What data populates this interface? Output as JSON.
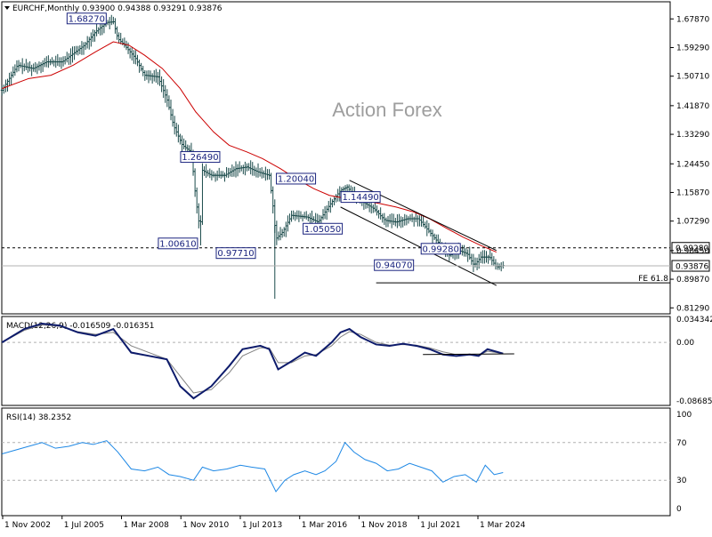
{
  "symbol_header": "EURCHF,Monthly  0.93900 0.94388 0.93291 0.93876",
  "watermark": "Action Forex",
  "chart_data": [
    {
      "type": "candlestick",
      "title": "EURCHF,Monthly  0.93900 0.94388 0.93291 0.93876",
      "ohlc_last": {
        "open": 0.939,
        "high": 0.94388,
        "low": 0.93291,
        "close": 0.93876
      },
      "ylim": [
        0.795,
        1.73
      ],
      "y_ticks": [
        "1.67870",
        "1.59290",
        "1.50710",
        "1.41870",
        "1.33290",
        "1.24450",
        "1.15870",
        "1.07290",
        "0.98450",
        "0.89870",
        "0.81290"
      ],
      "x_ticks": [
        "1 Nov 2002",
        "1 Jul 2005",
        "1 Mar 2008",
        "1 Nov 2010",
        "1 Jul 2013",
        "1 Mar 2016",
        "1 Nov 2018",
        "1 Jul 2021",
        "1 Mar 2024"
      ],
      "price_path": [
        [
          2002.8,
          1.465
        ],
        [
          2003.5,
          1.54
        ],
        [
          2004.2,
          1.53
        ],
        [
          2004.8,
          1.55
        ],
        [
          2005.5,
          1.55
        ],
        [
          2006.5,
          1.6
        ],
        [
          2007.0,
          1.64
        ],
        [
          2007.5,
          1.668
        ],
        [
          2007.8,
          1.67
        ],
        [
          2008.0,
          1.62
        ],
        [
          2008.3,
          1.6
        ],
        [
          2008.8,
          1.56
        ],
        [
          2009.2,
          1.51
        ],
        [
          2009.8,
          1.505
        ],
        [
          2010.2,
          1.44
        ],
        [
          2010.5,
          1.36
        ],
        [
          2010.9,
          1.3
        ],
        [
          2011.3,
          1.28
        ],
        [
          2011.5,
          1.14
        ],
        [
          2011.7,
          1.04
        ],
        [
          2011.8,
          1.225
        ],
        [
          2012.2,
          1.21
        ],
        [
          2012.8,
          1.21
        ],
        [
          2013.3,
          1.23
        ],
        [
          2013.8,
          1.235
        ],
        [
          2014.3,
          1.22
        ],
        [
          2014.8,
          1.21
        ],
        [
          2015.0,
          1.1
        ],
        [
          2015.1,
          1.02
        ],
        [
          2015.4,
          1.04
        ],
        [
          2015.8,
          1.09
        ],
        [
          2016.5,
          1.085
        ],
        [
          2017.0,
          1.07
        ],
        [
          2017.5,
          1.12
        ],
        [
          2018.0,
          1.165
        ],
        [
          2018.3,
          1.175
        ],
        [
          2018.6,
          1.15
        ],
        [
          2019.0,
          1.13
        ],
        [
          2019.5,
          1.11
        ],
        [
          2020.0,
          1.075
        ],
        [
          2020.5,
          1.07
        ],
        [
          2021.0,
          1.08
        ],
        [
          2021.5,
          1.08
        ],
        [
          2022.0,
          1.04
        ],
        [
          2022.5,
          1.0
        ],
        [
          2022.9,
          0.97
        ],
        [
          2023.3,
          0.985
        ],
        [
          2023.7,
          0.975
        ],
        [
          2024.0,
          0.94
        ],
        [
          2024.3,
          0.965
        ],
        [
          2024.7,
          0.965
        ],
        [
          2025.0,
          0.935
        ],
        [
          2025.3,
          0.94
        ]
      ],
      "ma_path": [
        [
          2002.8,
          1.47
        ],
        [
          2004.0,
          1.5
        ],
        [
          2005.0,
          1.51
        ],
        [
          2006.0,
          1.54
        ],
        [
          2007.0,
          1.58
        ],
        [
          2007.8,
          1.61
        ],
        [
          2008.5,
          1.6
        ],
        [
          2009.2,
          1.57
        ],
        [
          2010.0,
          1.53
        ],
        [
          2010.8,
          1.47
        ],
        [
          2011.5,
          1.4
        ],
        [
          2012.3,
          1.34
        ],
        [
          2013.0,
          1.3
        ],
        [
          2013.8,
          1.28
        ],
        [
          2014.5,
          1.26
        ],
        [
          2015.3,
          1.23
        ],
        [
          2016.0,
          1.2
        ],
        [
          2016.8,
          1.17
        ],
        [
          2017.5,
          1.15
        ],
        [
          2018.3,
          1.14
        ],
        [
          2019.0,
          1.135
        ],
        [
          2019.8,
          1.125
        ],
        [
          2020.5,
          1.115
        ],
        [
          2021.3,
          1.1
        ],
        [
          2022.0,
          1.08
        ],
        [
          2022.8,
          1.05
        ],
        [
          2023.5,
          1.025
        ],
        [
          2024.3,
          1.0
        ],
        [
          2025.0,
          0.98
        ]
      ],
      "annotations": [
        {
          "text": "1.68270",
          "x": 2006.6,
          "y": 1.68
        },
        {
          "text": "1.26490",
          "x": 2011.7,
          "y": 1.265
        },
        {
          "text": "1.00610",
          "x": 2010.7,
          "y": 1.006
        },
        {
          "text": "0.97710",
          "x": 2013.3,
          "y": 0.977
        },
        {
          "text": "1.20040",
          "x": 2016.0,
          "y": 1.2
        },
        {
          "text": "1.14490",
          "x": 2018.9,
          "y": 1.145
        },
        {
          "text": "1.05050",
          "x": 2017.2,
          "y": 1.05
        },
        {
          "text": "0.99280",
          "x": 2022.5,
          "y": 0.99
        },
        {
          "text": "0.94070",
          "x": 2020.4,
          "y": 0.941
        }
      ],
      "horizontal_lines": [
        {
          "y": 0.9928,
          "style": "dashed",
          "label": "0.99280"
        },
        {
          "y": 0.93876,
          "style": "solid",
          "label": "0.93876"
        }
      ],
      "fib_extension": {
        "label": "FE 61.8",
        "y": 0.888
      },
      "channel": [
        {
          "x1": 2018.4,
          "y1": 1.195,
          "x2": 2025.0,
          "y2": 0.985
        },
        {
          "x1": 2018.0,
          "y1": 1.115,
          "x2": 2025.0,
          "y2": 0.88
        }
      ],
      "colors": {
        "price": "#1b4b4b",
        "ma": "#cc0000",
        "annotation": "#1a237e"
      }
    },
    {
      "type": "line",
      "title": "MACD(12,26,9) -0.016509 -0.016351",
      "y_ticks": [
        "0.034342",
        "0.00",
        "-0.086853"
      ],
      "ylim": [
        -0.0935,
        0.0385
      ],
      "macd": [
        [
          2002.8,
          0.0
        ],
        [
          2003.8,
          0.02
        ],
        [
          2004.6,
          0.028
        ],
        [
          2005.4,
          0.025
        ],
        [
          2006.2,
          0.015
        ],
        [
          2007.0,
          0.01
        ],
        [
          2007.8,
          0.02
        ],
        [
          2008.6,
          -0.015
        ],
        [
          2009.4,
          -0.02
        ],
        [
          2010.2,
          -0.025
        ],
        [
          2010.8,
          -0.065
        ],
        [
          2011.4,
          -0.083
        ],
        [
          2012.2,
          -0.065
        ],
        [
          2013.0,
          -0.035
        ],
        [
          2013.6,
          -0.01
        ],
        [
          2014.4,
          -0.005
        ],
        [
          2014.8,
          -0.01
        ],
        [
          2015.2,
          -0.04
        ],
        [
          2015.8,
          -0.028
        ],
        [
          2016.4,
          -0.015
        ],
        [
          2016.9,
          -0.02
        ],
        [
          2017.6,
          0.0
        ],
        [
          2018.0,
          0.015
        ],
        [
          2018.4,
          0.02
        ],
        [
          2018.9,
          0.008
        ],
        [
          2019.6,
          -0.003
        ],
        [
          2020.2,
          -0.005
        ],
        [
          2020.8,
          -0.002
        ],
        [
          2021.4,
          -0.005
        ],
        [
          2022.0,
          -0.01
        ],
        [
          2022.6,
          -0.018
        ],
        [
          2023.2,
          -0.02
        ],
        [
          2023.8,
          -0.018
        ],
        [
          2024.2,
          -0.02
        ],
        [
          2024.6,
          -0.01
        ],
        [
          2025.3,
          -0.0165
        ]
      ],
      "signal": [
        [
          2002.8,
          0.0
        ],
        [
          2003.8,
          0.018
        ],
        [
          2004.6,
          0.026
        ],
        [
          2005.4,
          0.024
        ],
        [
          2006.2,
          0.016
        ],
        [
          2007.0,
          0.012
        ],
        [
          2007.8,
          0.015
        ],
        [
          2008.6,
          -0.005
        ],
        [
          2009.4,
          -0.015
        ],
        [
          2010.2,
          -0.025
        ],
        [
          2010.8,
          -0.05
        ],
        [
          2011.4,
          -0.075
        ],
        [
          2012.2,
          -0.07
        ],
        [
          2013.0,
          -0.045
        ],
        [
          2013.6,
          -0.02
        ],
        [
          2014.4,
          -0.008
        ],
        [
          2014.8,
          -0.008
        ],
        [
          2015.2,
          -0.03
        ],
        [
          2015.8,
          -0.03
        ],
        [
          2016.4,
          -0.02
        ],
        [
          2016.9,
          -0.018
        ],
        [
          2017.6,
          -0.005
        ],
        [
          2018.0,
          0.008
        ],
        [
          2018.4,
          0.016
        ],
        [
          2018.9,
          0.012
        ],
        [
          2019.6,
          0.0
        ],
        [
          2020.2,
          -0.004
        ],
        [
          2020.8,
          -0.003
        ],
        [
          2021.4,
          -0.004
        ],
        [
          2022.0,
          -0.008
        ],
        [
          2022.6,
          -0.014
        ],
        [
          2023.2,
          -0.018
        ],
        [
          2023.8,
          -0.018
        ],
        [
          2024.2,
          -0.019
        ],
        [
          2024.6,
          -0.013
        ],
        [
          2025.3,
          -0.0164
        ]
      ],
      "trendline": {
        "x1": 2021.7,
        "y1": -0.018,
        "x2": 2025.8,
        "y2": -0.017
      },
      "colors": {
        "macd": "#0d1b6b",
        "signal": "#808080"
      }
    },
    {
      "type": "line",
      "title": "RSI(14) 38.2352",
      "y_ticks": [
        "100",
        "70",
        "30",
        "0"
      ],
      "ylim": [
        0,
        100
      ],
      "levels": [
        70,
        30
      ],
      "rsi": [
        [
          2002.8,
          58
        ],
        [
          2003.4,
          62
        ],
        [
          2004.0,
          66
        ],
        [
          2004.6,
          70
        ],
        [
          2005.2,
          64
        ],
        [
          2005.8,
          66
        ],
        [
          2006.4,
          70
        ],
        [
          2006.9,
          68
        ],
        [
          2007.5,
          72
        ],
        [
          2008.0,
          60
        ],
        [
          2008.6,
          42
        ],
        [
          2009.2,
          40
        ],
        [
          2009.8,
          44
        ],
        [
          2010.3,
          36
        ],
        [
          2010.8,
          34
        ],
        [
          2011.4,
          30
        ],
        [
          2011.8,
          44
        ],
        [
          2012.3,
          40
        ],
        [
          2012.9,
          42
        ],
        [
          2013.5,
          46
        ],
        [
          2014.0,
          44
        ],
        [
          2014.6,
          42
        ],
        [
          2015.1,
          18
        ],
        [
          2015.5,
          30
        ],
        [
          2015.9,
          36
        ],
        [
          2016.4,
          40
        ],
        [
          2016.9,
          36
        ],
        [
          2017.3,
          40
        ],
        [
          2017.8,
          50
        ],
        [
          2018.2,
          70
        ],
        [
          2018.6,
          60
        ],
        [
          2019.1,
          52
        ],
        [
          2019.6,
          48
        ],
        [
          2020.1,
          40
        ],
        [
          2020.6,
          42
        ],
        [
          2021.1,
          48
        ],
        [
          2021.6,
          44
        ],
        [
          2022.1,
          40
        ],
        [
          2022.6,
          28
        ],
        [
          2023.1,
          34
        ],
        [
          2023.6,
          36
        ],
        [
          2024.1,
          28
        ],
        [
          2024.5,
          46
        ],
        [
          2024.9,
          36
        ],
        [
          2025.3,
          38.2
        ]
      ],
      "colors": {
        "rsi": "#1e88e5"
      }
    }
  ]
}
